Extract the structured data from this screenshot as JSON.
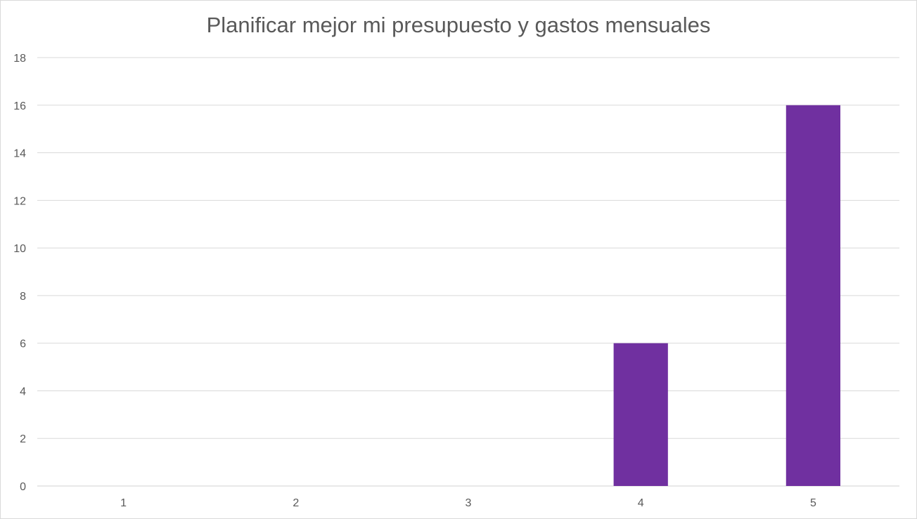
{
  "chart_data": {
    "type": "bar",
    "title": "Planificar mejor mi presupuesto y gastos mensuales",
    "xlabel": "",
    "ylabel": "",
    "categories": [
      "1",
      "2",
      "3",
      "4",
      "5"
    ],
    "values": [
      0,
      0,
      0,
      6,
      16
    ],
    "ylim": [
      0,
      18
    ],
    "yticks": [
      "0",
      "2",
      "4",
      "6",
      "8",
      "10",
      "12",
      "14",
      "16",
      "18"
    ],
    "grid": true,
    "legend": "none",
    "colors": {
      "bar": "#7030a0",
      "grid": "#d9d9d9",
      "text": "#595959"
    }
  }
}
